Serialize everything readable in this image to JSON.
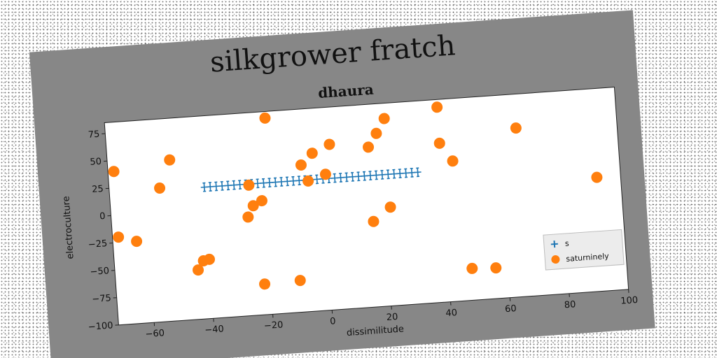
{
  "chart_data": {
    "type": "scatter",
    "title": "silkgrower fratch",
    "subtitle": "dhaura",
    "xlabel": "dissimilitude",
    "ylabel": "electroculture",
    "xlim": [
      -72,
      100
    ],
    "ylim": [
      -100,
      85
    ],
    "xticks": [
      -60,
      -40,
      -20,
      0,
      20,
      40,
      60,
      80,
      100
    ],
    "yticks": [
      75,
      50,
      25,
      0,
      -25,
      -50,
      -75,
      -100
    ],
    "grid": false,
    "legend_position": "lower-right",
    "series": [
      {
        "name": "s",
        "marker": "plus-with-errorbars",
        "color": "#1f77b4",
        "points": [
          [
            -40,
            20
          ],
          [
            -38,
            20
          ],
          [
            -36,
            20
          ],
          [
            -34,
            20
          ],
          [
            -32,
            20
          ],
          [
            -30,
            20
          ],
          [
            -28,
            20
          ],
          [
            -26,
            20
          ],
          [
            -24,
            20
          ],
          [
            -22,
            20
          ],
          [
            -20,
            20
          ],
          [
            -18,
            20
          ],
          [
            -16,
            20
          ],
          [
            -14,
            20
          ],
          [
            -12,
            20
          ],
          [
            -10,
            20
          ],
          [
            -8,
            20
          ],
          [
            -6,
            20
          ],
          [
            -4,
            20
          ],
          [
            -2,
            20
          ],
          [
            0,
            20
          ],
          [
            2,
            20
          ],
          [
            4,
            20
          ],
          [
            6,
            20
          ],
          [
            8,
            20
          ],
          [
            10,
            20
          ],
          [
            12,
            20
          ],
          [
            14,
            20
          ],
          [
            16,
            20
          ],
          [
            18,
            20
          ],
          [
            20,
            20
          ],
          [
            22,
            20
          ],
          [
            24,
            20
          ],
          [
            26,
            20
          ],
          [
            28,
            20
          ],
          [
            30,
            20
          ],
          [
            32,
            20
          ]
        ]
      },
      {
        "name": "saturninely",
        "marker": "circle",
        "color": "#ff7f0e",
        "points": [
          [
            -70,
            40
          ],
          [
            -70,
            -20
          ],
          [
            -64,
            -25
          ],
          [
            -55,
            22
          ],
          [
            -51,
            47
          ],
          [
            -44,
            -55
          ],
          [
            -42,
            -47
          ],
          [
            -40,
            -46
          ],
          [
            -26,
            -10
          ],
          [
            -25,
            19
          ],
          [
            -24,
            0
          ],
          [
            -22,
            -72
          ],
          [
            -21,
            4
          ],
          [
            -18,
            79
          ],
          [
            -10,
            -71
          ],
          [
            -7,
            34
          ],
          [
            -5,
            19
          ],
          [
            -3,
            44
          ],
          [
            1,
            24
          ],
          [
            3,
            51
          ],
          [
            16,
            46
          ],
          [
            16,
            -22
          ],
          [
            19,
            58
          ],
          [
            22,
            71
          ],
          [
            22,
            -10
          ],
          [
            40,
            78
          ],
          [
            40,
            45
          ],
          [
            44,
            28
          ],
          [
            48,
            -71
          ],
          [
            56,
            -72
          ],
          [
            66,
            54
          ],
          [
            92,
            4
          ]
        ]
      }
    ]
  }
}
